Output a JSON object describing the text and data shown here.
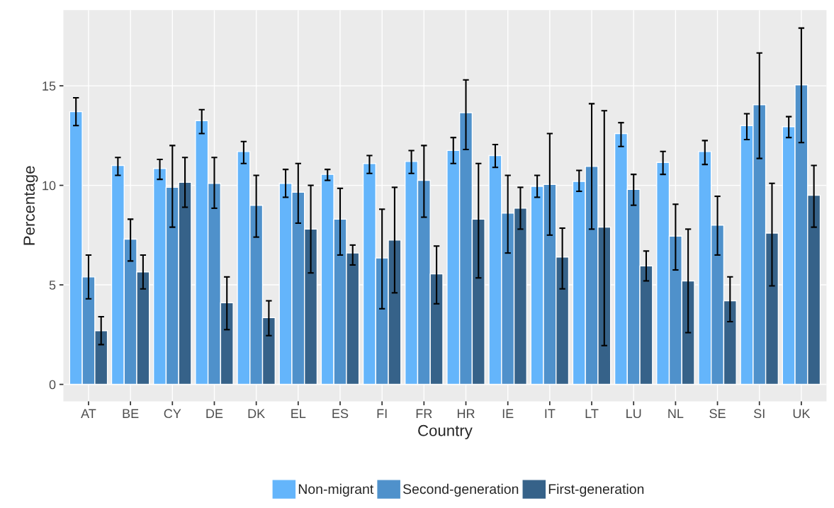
{
  "chart_data": {
    "type": "bar",
    "xlabel": "Country",
    "ylabel": "Percentage",
    "categories": [
      "AT",
      "BE",
      "CY",
      "DE",
      "DK",
      "EL",
      "ES",
      "FI",
      "FR",
      "HR",
      "IE",
      "IT",
      "LT",
      "LU",
      "NL",
      "SE",
      "SI",
      "UK"
    ],
    "ylim": [
      -0.85,
      18.8
    ],
    "yticks": [
      0,
      5,
      10,
      15
    ],
    "grid": true,
    "legend": "bottom",
    "series": [
      {
        "name": "Non-migrant",
        "color": "#64b5fb",
        "values": [
          13.7,
          11.0,
          10.85,
          13.25,
          11.7,
          10.1,
          10.55,
          11.1,
          11.2,
          11.75,
          11.5,
          9.95,
          10.2,
          12.6,
          11.15,
          11.7,
          13.0,
          12.95
        ],
        "errors": [
          [
            13.0,
            14.4
          ],
          [
            10.5,
            11.4
          ],
          [
            10.3,
            11.3
          ],
          [
            12.6,
            13.8
          ],
          [
            11.1,
            12.2
          ],
          [
            9.4,
            10.8
          ],
          [
            10.25,
            10.8
          ],
          [
            10.6,
            11.5
          ],
          [
            10.6,
            11.75
          ],
          [
            11.1,
            12.4
          ],
          [
            10.9,
            12.05
          ],
          [
            9.4,
            10.5
          ],
          [
            9.7,
            10.75
          ],
          [
            11.95,
            13.15
          ],
          [
            10.55,
            11.7
          ],
          [
            11.05,
            12.25
          ],
          [
            12.3,
            13.6
          ],
          [
            12.4,
            13.45
          ]
        ]
      },
      {
        "name": "Second-generation",
        "color": "#4f91cb",
        "values": [
          5.4,
          7.3,
          9.9,
          10.1,
          9.0,
          9.65,
          8.3,
          6.35,
          10.25,
          13.65,
          8.6,
          10.05,
          10.95,
          9.8,
          7.45,
          8.0,
          14.05,
          15.05
        ],
        "errors": [
          [
            4.3,
            6.5
          ],
          [
            6.2,
            8.3
          ],
          [
            7.9,
            12.0
          ],
          [
            8.85,
            11.4
          ],
          [
            7.4,
            10.5
          ],
          [
            8.1,
            11.1
          ],
          [
            6.5,
            9.85
          ],
          [
            3.8,
            8.8
          ],
          [
            8.4,
            12.0
          ],
          [
            11.8,
            15.3
          ],
          [
            6.6,
            10.5
          ],
          [
            7.5,
            12.6
          ],
          [
            7.8,
            14.1
          ],
          [
            9.0,
            10.55
          ],
          [
            5.75,
            9.05
          ],
          [
            6.5,
            9.45
          ],
          [
            11.35,
            16.65
          ],
          [
            12.15,
            17.9
          ]
        ]
      },
      {
        "name": "First-generation",
        "color": "#366289",
        "values": [
          2.7,
          5.65,
          10.15,
          4.1,
          3.35,
          7.8,
          6.6,
          7.25,
          5.55,
          8.3,
          8.85,
          6.4,
          7.9,
          5.95,
          5.2,
          4.2,
          7.6,
          9.5
        ],
        "errors": [
          [
            2.0,
            3.4
          ],
          [
            4.8,
            6.5
          ],
          [
            8.9,
            11.4
          ],
          [
            2.75,
            5.4
          ],
          [
            2.45,
            4.2
          ],
          [
            5.6,
            10.0
          ],
          [
            6.0,
            7.0
          ],
          [
            4.6,
            9.9
          ],
          [
            4.05,
            6.95
          ],
          [
            5.35,
            11.1
          ],
          [
            7.8,
            9.9
          ],
          [
            4.8,
            7.85
          ],
          [
            1.95,
            13.75
          ],
          [
            5.2,
            6.7
          ],
          [
            2.6,
            7.8
          ],
          [
            3.15,
            5.4
          ],
          [
            4.95,
            10.1
          ],
          [
            7.9,
            11.0
          ]
        ]
      }
    ]
  }
}
